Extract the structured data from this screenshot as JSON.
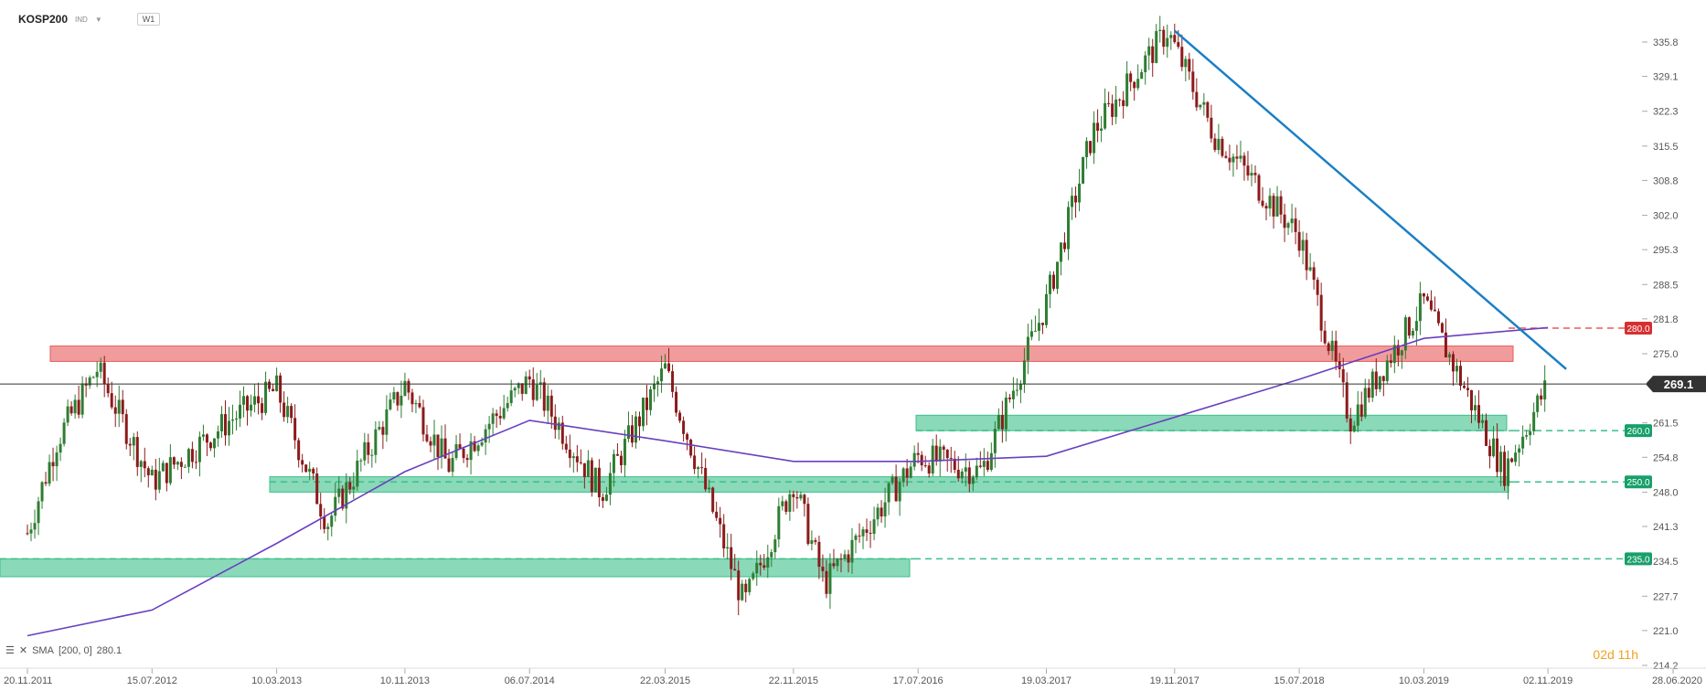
{
  "header": {
    "symbol": "KOSP200",
    "market": "IND",
    "timeframe": "W1"
  },
  "sma_legend": {
    "label": "SMA",
    "params": "[200, 0]",
    "value": "280.1"
  },
  "countdown": {
    "days": "02d",
    "hours": "11h"
  },
  "colors": {
    "bull": "#2e7d32",
    "bear": "#8b1a1a",
    "sma": "#6a3fc0",
    "trendline": "#1a7fc4",
    "resistance_zone": "#e85a5a",
    "support_zone": "#3cbf8a",
    "price_line": "#333333"
  },
  "chart_data": {
    "type": "candlestick",
    "title": "KOSP200",
    "interval": "W1",
    "ylim": [
      214.2,
      340.0
    ],
    "y_ticks": [
      "335.8",
      "329.1",
      "322.3",
      "315.5",
      "308.8",
      "302.0",
      "295.3",
      "288.5",
      "281.8",
      "275.0",
      "261.5",
      "254.8",
      "248.0",
      "241.3",
      "234.5",
      "227.7",
      "221.0",
      "214.2"
    ],
    "x_ticks": [
      "20.11.2011",
      "15.07.2012",
      "10.03.2013",
      "10.11.2013",
      "06.07.2014",
      "22.03.2015",
      "22.11.2015",
      "17.07.2016",
      "19.03.2017",
      "19.11.2017",
      "15.07.2018",
      "10.03.2019",
      "02.11.2019",
      "28.06.2020"
    ],
    "current_price": 269.1,
    "price_path": [
      [
        "20.11.2011",
        240
      ],
      [
        "15.01.2012",
        258
      ],
      [
        "01.04.2012",
        272
      ],
      [
        "15.07.2012",
        250
      ],
      [
        "10.12.2012",
        262
      ],
      [
        "10.03.2013",
        268
      ],
      [
        "15.06.2013",
        242
      ],
      [
        "10.11.2013",
        269
      ],
      [
        "01.02.2014",
        253
      ],
      [
        "06.07.2014",
        270
      ],
      [
        "20.11.2014",
        248
      ],
      [
        "22.03.2015",
        272
      ],
      [
        "20.08.2015",
        226
      ],
      [
        "22.11.2015",
        250
      ],
      [
        "20.01.2016",
        230
      ],
      [
        "17.07.2016",
        255
      ],
      [
        "15.11.2016",
        252
      ],
      [
        "19.03.2017",
        285
      ],
      [
        "15.06.2017",
        318
      ],
      [
        "05.11.2017",
        338
      ],
      [
        "01.02.2018",
        318
      ],
      [
        "15.07.2018",
        298
      ],
      [
        "20.10.2018",
        262
      ],
      [
        "10.03.2019",
        285
      ],
      [
        "10.08.2019",
        252
      ],
      [
        "02.11.2019",
        269.1
      ]
    ],
    "sma": {
      "name": "SMA [200, 0]",
      "value": 280.1,
      "points": [
        [
          "20.11.2011",
          220
        ],
        [
          "15.07.2012",
          225
        ],
        [
          "10.03.2013",
          238
        ],
        [
          "10.11.2013",
          252
        ],
        [
          "06.07.2014",
          262
        ],
        [
          "22.03.2015",
          258
        ],
        [
          "22.11.2015",
          254
        ],
        [
          "17.07.2016",
          254
        ],
        [
          "19.03.2017",
          255
        ],
        [
          "15.07.2018",
          270
        ],
        [
          "10.03.2019",
          278
        ],
        [
          "02.11.2019",
          280.1
        ]
      ]
    },
    "trendline": {
      "from": [
        "19.11.2017",
        338
      ],
      "to": [
        "02.11.2019",
        272
      ]
    },
    "zones": [
      {
        "kind": "resistance",
        "low": 273.5,
        "high": 276.5,
        "level": "280.0",
        "line": 280.0
      },
      {
        "kind": "support",
        "low": 260.0,
        "high": 263.0,
        "level": "260.0",
        "line": 260.0
      },
      {
        "kind": "support",
        "low": 248.0,
        "high": 251.0,
        "level": "250.0",
        "line": 250.0
      },
      {
        "kind": "support",
        "low": 231.5,
        "high": 235.0,
        "level": "235.0",
        "line": 235.0
      }
    ]
  }
}
